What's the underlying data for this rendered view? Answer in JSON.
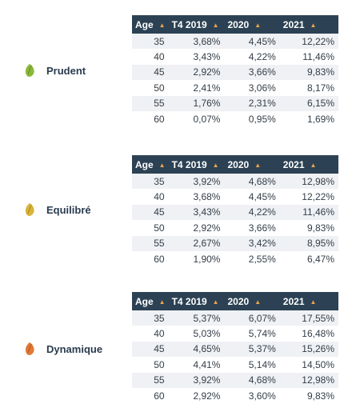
{
  "columns": {
    "age": "Age",
    "t4_2019": "T4 2019",
    "y2020": "2020",
    "y2021": "2021"
  },
  "profiles": [
    {
      "name": "Prudent",
      "icon": "leaf-icon",
      "icon_color": "#8cb83a",
      "rows": [
        {
          "age": "35",
          "t4_2019": "3,68%",
          "y2020": "4,45%",
          "y2021": "12,22%"
        },
        {
          "age": "40",
          "t4_2019": "3,43%",
          "y2020": "4,22%",
          "y2021": "11,46%"
        },
        {
          "age": "45",
          "t4_2019": "2,92%",
          "y2020": "3,66%",
          "y2021": "9,83%"
        },
        {
          "age": "50",
          "t4_2019": "2,41%",
          "y2020": "3,06%",
          "y2021": "8,17%"
        },
        {
          "age": "55",
          "t4_2019": "1,76%",
          "y2020": "2,31%",
          "y2021": "6,15%"
        },
        {
          "age": "60",
          "t4_2019": "0,07%",
          "y2020": "0,95%",
          "y2021": "1,69%"
        }
      ]
    },
    {
      "name": "Equilibré",
      "icon": "leaf-icon",
      "icon_color": "#d8b43a",
      "rows": [
        {
          "age": "35",
          "t4_2019": "3,92%",
          "y2020": "4,68%",
          "y2021": "12,98%"
        },
        {
          "age": "40",
          "t4_2019": "3,68%",
          "y2020": "4,45%",
          "y2021": "12,22%"
        },
        {
          "age": "45",
          "t4_2019": "3,43%",
          "y2020": "4,22%",
          "y2021": "11,46%"
        },
        {
          "age": "50",
          "t4_2019": "2,92%",
          "y2020": "3,66%",
          "y2021": "9,83%"
        },
        {
          "age": "55",
          "t4_2019": "2,67%",
          "y2020": "3,42%",
          "y2021": "8,95%"
        },
        {
          "age": "60",
          "t4_2019": "1,90%",
          "y2020": "2,55%",
          "y2021": "6,47%"
        }
      ]
    },
    {
      "name": "Dynamique",
      "icon": "leaf-icon",
      "icon_color": "#e07a38",
      "rows": [
        {
          "age": "35",
          "t4_2019": "5,37%",
          "y2020": "6,07%",
          "y2021": "17,55%"
        },
        {
          "age": "40",
          "t4_2019": "5,03%",
          "y2020": "5,74%",
          "y2021": "16,48%"
        },
        {
          "age": "45",
          "t4_2019": "4,65%",
          "y2020": "5,37%",
          "y2021": "15,26%"
        },
        {
          "age": "50",
          "t4_2019": "4,41%",
          "y2020": "5,14%",
          "y2021": "14,50%"
        },
        {
          "age": "55",
          "t4_2019": "3,92%",
          "y2020": "4,68%",
          "y2021": "12,98%"
        },
        {
          "age": "60",
          "t4_2019": "2,92%",
          "y2020": "3,60%",
          "y2021": "9,83%"
        }
      ]
    }
  ]
}
